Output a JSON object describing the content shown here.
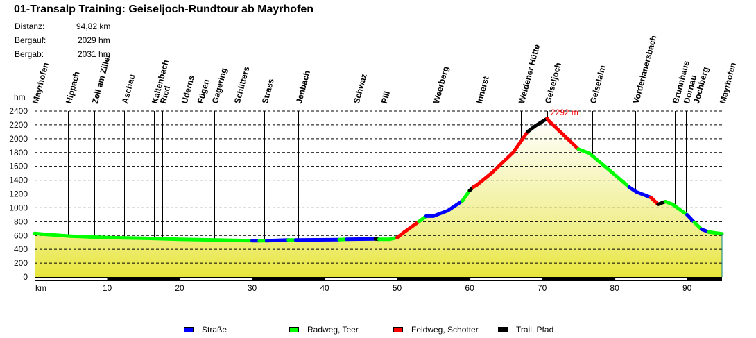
{
  "header": {
    "title": "01-Transalp Training: Geiseljoch-Rundtour ab Mayrhofen",
    "stats": [
      {
        "label": "Distanz:",
        "value": "94,82 km"
      },
      {
        "label": "Bergauf:",
        "value": "2029 hm"
      },
      {
        "label": "Bergab:",
        "value": "2031 hm"
      }
    ]
  },
  "legend": [
    {
      "label": "Straße",
      "color": "#0000ff"
    },
    {
      "label": "Radweg, Teer",
      "color": "#00ff00"
    },
    {
      "label": "Feldweg, Schotter",
      "color": "#ff0000"
    },
    {
      "label": "Trail, Pfad",
      "color": "#000000"
    }
  ],
  "chart_data": {
    "type": "area",
    "title": "01-Transalp Training: Geiseljoch-Rundtour ab Mayrhofen",
    "xlabel": "km",
    "ylabel": "hm",
    "xlim": [
      0,
      94.82
    ],
    "ylim": [
      0,
      2400
    ],
    "yticks": [
      0,
      200,
      400,
      600,
      800,
      1000,
      1200,
      1400,
      1600,
      1800,
      2000,
      2200,
      2400
    ],
    "xticks": [
      10,
      20,
      30,
      40,
      50,
      60,
      70,
      80,
      90
    ],
    "grid": {
      "horizontal": "dashed",
      "vertical": false
    },
    "max_annotation": {
      "km": 70.7,
      "hm": 2292,
      "label": "2292 m"
    },
    "profile": [
      {
        "km": 0,
        "hm": 630,
        "surface": "Straße"
      },
      {
        "km": 1,
        "hm": 620,
        "surface": "Radweg, Teer"
      },
      {
        "km": 5,
        "hm": 590,
        "surface": "Radweg, Teer"
      },
      {
        "km": 10,
        "hm": 570,
        "surface": "Radweg, Teer"
      },
      {
        "km": 15,
        "hm": 560,
        "surface": "Radweg, Teer"
      },
      {
        "km": 20,
        "hm": 545,
        "surface": "Radweg, Teer"
      },
      {
        "km": 25,
        "hm": 535,
        "surface": "Radweg, Teer"
      },
      {
        "km": 30,
        "hm": 525,
        "surface": "Radweg, Teer"
      },
      {
        "km": 31,
        "hm": 525,
        "surface": "Straße"
      },
      {
        "km": 32,
        "hm": 525,
        "surface": "Radweg, Teer"
      },
      {
        "km": 35,
        "hm": 535,
        "surface": "Straße"
      },
      {
        "km": 36,
        "hm": 535,
        "surface": "Radweg, Teer"
      },
      {
        "km": 42,
        "hm": 540,
        "surface": "Straße"
      },
      {
        "km": 43,
        "hm": 545,
        "surface": "Radweg, Teer"
      },
      {
        "km": 47,
        "hm": 550,
        "surface": "Straße"
      },
      {
        "km": 47.5,
        "hm": 545,
        "surface": "Trail, Pfad"
      },
      {
        "km": 49,
        "hm": 545,
        "surface": "Radweg, Teer"
      },
      {
        "km": 50,
        "hm": 570,
        "surface": "Radweg, Teer"
      },
      {
        "km": 51,
        "hm": 650,
        "surface": "Feldweg, Schotter"
      },
      {
        "km": 53,
        "hm": 800,
        "surface": "Feldweg, Schotter"
      },
      {
        "km": 54,
        "hm": 880,
        "surface": "Radweg, Teer"
      },
      {
        "km": 55,
        "hm": 880,
        "surface": "Straße"
      },
      {
        "km": 57,
        "hm": 960,
        "surface": "Straße"
      },
      {
        "km": 59,
        "hm": 1100,
        "surface": "Straße"
      },
      {
        "km": 60,
        "hm": 1250,
        "surface": "Radweg, Teer"
      },
      {
        "km": 60.5,
        "hm": 1300,
        "surface": "Trail, Pfad"
      },
      {
        "km": 61,
        "hm": 1330,
        "surface": "Feldweg, Schotter"
      },
      {
        "km": 63,
        "hm": 1500,
        "surface": "Feldweg, Schotter"
      },
      {
        "km": 66,
        "hm": 1800,
        "surface": "Feldweg, Schotter"
      },
      {
        "km": 68,
        "hm": 2100,
        "surface": "Feldweg, Schotter"
      },
      {
        "km": 69,
        "hm": 2180,
        "surface": "Trail, Pfad"
      },
      {
        "km": 70.7,
        "hm": 2292,
        "surface": "Trail, Pfad"
      },
      {
        "km": 71,
        "hm": 2250,
        "surface": "Feldweg, Schotter"
      },
      {
        "km": 73,
        "hm": 2050,
        "surface": "Feldweg, Schotter"
      },
      {
        "km": 75,
        "hm": 1850,
        "surface": "Feldweg, Schotter"
      },
      {
        "km": 76.5,
        "hm": 1790,
        "surface": "Radweg, Teer"
      },
      {
        "km": 79,
        "hm": 1570,
        "surface": "Radweg, Teer"
      },
      {
        "km": 82,
        "hm": 1300,
        "surface": "Radweg, Teer"
      },
      {
        "km": 83,
        "hm": 1230,
        "surface": "Straße"
      },
      {
        "km": 85,
        "hm": 1150,
        "surface": "Straße"
      },
      {
        "km": 86,
        "hm": 1050,
        "surface": "Feldweg, Schotter"
      },
      {
        "km": 87,
        "hm": 1090,
        "surface": "Trail, Pfad"
      },
      {
        "km": 88,
        "hm": 1050,
        "surface": "Radweg, Teer"
      },
      {
        "km": 90,
        "hm": 900,
        "surface": "Radweg, Teer"
      },
      {
        "km": 91,
        "hm": 790,
        "surface": "Straße"
      },
      {
        "km": 92,
        "hm": 690,
        "surface": "Radweg, Teer"
      },
      {
        "km": 93,
        "hm": 650,
        "surface": "Straße"
      },
      {
        "km": 94.82,
        "hm": 625,
        "surface": "Radweg, Teer"
      }
    ],
    "waypoints": [
      {
        "name": "Mayrhofen",
        "km": 0
      },
      {
        "name": "Hippach",
        "km": 4.6
      },
      {
        "name": "Zell am Ziller",
        "km": 8.2
      },
      {
        "name": "Aschau",
        "km": 12.3
      },
      {
        "name": "Kaltenbach",
        "km": 16.5
      },
      {
        "name": "Ried",
        "km": 17.6
      },
      {
        "name": "Uderns",
        "km": 20.6
      },
      {
        "name": "Fügen",
        "km": 22.8
      },
      {
        "name": "Gagering",
        "km": 24.8
      },
      {
        "name": "Schlitters",
        "km": 27.8
      },
      {
        "name": "Strass",
        "km": 31.7
      },
      {
        "name": "Jenbach",
        "km": 36.4
      },
      {
        "name": "Schwaz",
        "km": 44.3
      },
      {
        "name": "Pill",
        "km": 48.1
      },
      {
        "name": "Weerberg",
        "km": 55.3
      },
      {
        "name": "Innerst",
        "km": 61.2
      },
      {
        "name": "Weidener Hütte",
        "km": 67.1
      },
      {
        "name": "Geiseljoch",
        "km": 70.7
      },
      {
        "name": "Geiselalm",
        "km": 76.9
      },
      {
        "name": "Vorderlanersbach",
        "km": 82.9
      },
      {
        "name": "Brunnhaus",
        "km": 88.3
      },
      {
        "name": "Dornau",
        "km": 89.8
      },
      {
        "name": "Jochberg",
        "km": 91.2
      },
      {
        "name": "Mayrhofen",
        "km": 94.82
      }
    ]
  }
}
